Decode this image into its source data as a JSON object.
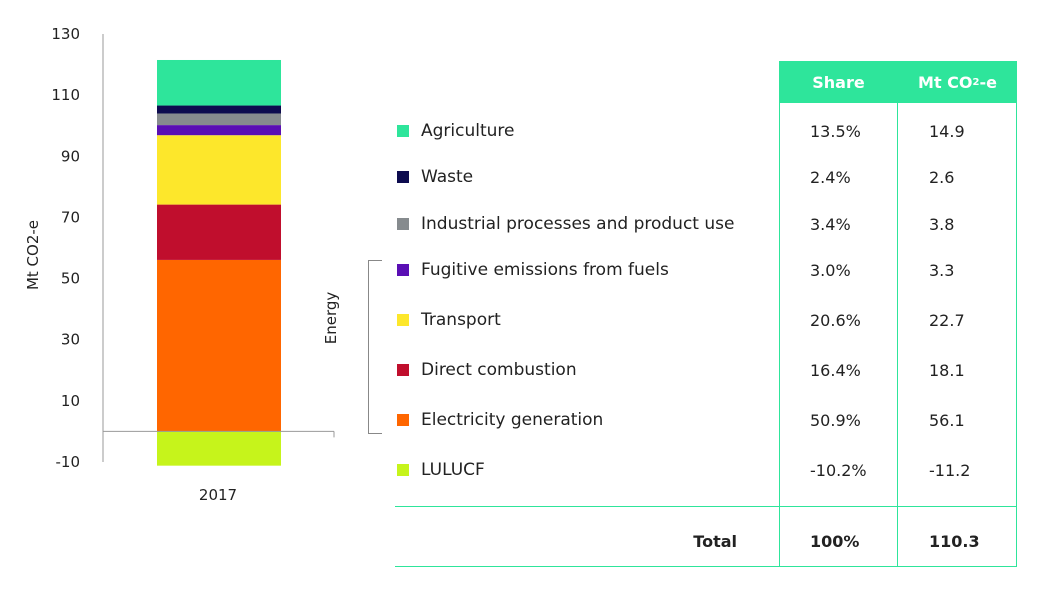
{
  "chart_data": {
    "type": "bar",
    "stacked": true,
    "categories": [
      "2017"
    ],
    "ylabel": "Mt CO2-e",
    "ylim": [
      -10,
      130
    ],
    "yticks": [
      -10,
      10,
      30,
      50,
      70,
      90,
      110,
      130
    ],
    "series": [
      {
        "name": "LULUCF",
        "values": [
          -11.2
        ],
        "color": "#c6f41b"
      },
      {
        "name": "Electricity generation",
        "values": [
          56.1
        ],
        "color": "#ff6600"
      },
      {
        "name": "Direct combustion",
        "values": [
          18.1
        ],
        "color": "#c00e2d"
      },
      {
        "name": "Transport",
        "values": [
          22.7
        ],
        "color": "#fde72b"
      },
      {
        "name": "Fugitive emissions from fuels",
        "values": [
          3.3
        ],
        "color": "#5a0fb4"
      },
      {
        "name": "Industrial processes and product use",
        "values": [
          3.8
        ],
        "color": "#868b8e"
      },
      {
        "name": "Waste",
        "values": [
          2.6
        ],
        "color": "#0d0b4f"
      },
      {
        "name": "Agriculture",
        "values": [
          14.9
        ],
        "color": "#2ee59b"
      }
    ]
  },
  "table": {
    "headers": {
      "share": "Share",
      "mt": "Mt CO",
      "mt_sub": "2",
      "mt_suffix": "-e"
    },
    "rows": [
      {
        "label": "Agriculture",
        "share": "13.5%",
        "mt": "14.9",
        "color": "#2ee59b"
      },
      {
        "label": "Waste",
        "share": "2.4%",
        "mt": "2.6",
        "color": "#0d0b4f"
      },
      {
        "label": "Industrial processes and product use",
        "share": "3.4%",
        "mt": "3.8",
        "color": "#868b8e"
      },
      {
        "label": "Fugitive emissions from fuels",
        "share": "3.0%",
        "mt": "3.3",
        "color": "#5a0fb4"
      },
      {
        "label": "Transport",
        "share": "20.6%",
        "mt": "22.7",
        "color": "#fde72b"
      },
      {
        "label": "Direct combustion",
        "share": "16.4%",
        "mt": "18.1",
        "color": "#c00e2d"
      },
      {
        "label": "Electricity generation",
        "share": "50.9%",
        "mt": "56.1",
        "color": "#ff6600"
      },
      {
        "label": "LULUCF",
        "share": "-10.2%",
        "mt": "-11.2",
        "color": "#c6f41b"
      }
    ],
    "total": {
      "label": "Total",
      "share": "100%",
      "mt": "110.3"
    }
  },
  "energy_label": "Energy"
}
